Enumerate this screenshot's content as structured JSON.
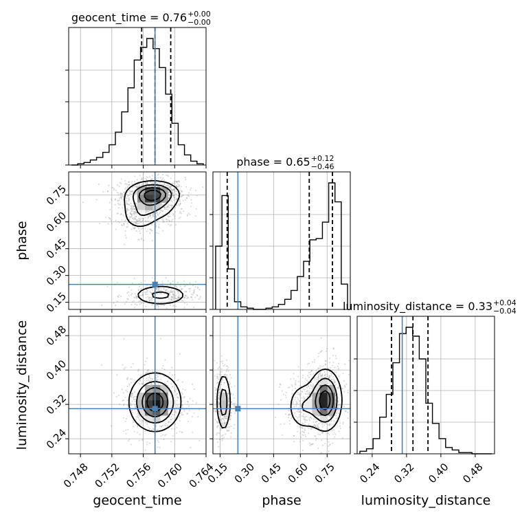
{
  "chart_data": {
    "type": "corner",
    "parameters": [
      "geocent_time",
      "phase",
      "luminosity_distance"
    ],
    "xlabels": [
      "geocent_time",
      "phase",
      "luminosity_distance"
    ],
    "ylabels": [
      "",
      "phase",
      "luminosity_distance"
    ],
    "titles": [
      {
        "param": "geocent_time",
        "text": "geocent_time = 0.76",
        "sup": "+0.00",
        "sub": "−0.00"
      },
      {
        "param": "phase",
        "text": "phase = 0.65",
        "sup": "+0.12",
        "sub": "−0.46"
      },
      {
        "param": "luminosity_distance",
        "text": "luminosity_distance = 0.33",
        "sup": "+0.04",
        "sub": "−0.04"
      }
    ],
    "ranges": {
      "geocent_time": [
        0.7465,
        0.764
      ],
      "phase": [
        0.11,
        0.88
      ],
      "luminosity_distance": [
        0.205,
        0.525
      ]
    },
    "ticks": {
      "geocent_time": [
        "0.748",
        "0.752",
        "0.756",
        "0.760",
        "0.764"
      ],
      "phase": [
        "0.15",
        "0.30",
        "0.45",
        "0.60",
        "0.75"
      ],
      "luminosity_distance": [
        "0.24",
        "0.32",
        "0.40",
        "0.48"
      ]
    },
    "truths": {
      "geocent_time": 0.7575,
      "phase": 0.25,
      "luminosity_distance": 0.31
    },
    "quantiles": {
      "geocent_time": [
        0.7558,
        0.7575,
        0.7595
      ],
      "phase": [
        0.19,
        0.65,
        0.78
      ],
      "luminosity_distance": [
        0.285,
        0.335,
        0.37
      ]
    },
    "histograms": {
      "geocent_time": [
        0,
        0.01,
        0.02,
        0.04,
        0.06,
        0.1,
        0.16,
        0.26,
        0.42,
        0.61,
        0.83,
        0.93,
        1.0,
        0.92,
        0.77,
        0.56,
        0.33,
        0.16,
        0.08,
        0.03,
        0.01
      ],
      "phase": [
        0.5,
        0.9,
        0.32,
        0.06,
        0.02,
        0.01,
        0.0,
        0.0,
        0.01,
        0.02,
        0.04,
        0.08,
        0.15,
        0.26,
        0.38,
        0.55,
        0.56,
        0.69,
        1.0,
        0.85,
        0.2
      ],
      "luminosity_distance": [
        0.02,
        0.04,
        0.12,
        0.29,
        0.47,
        0.72,
        0.95,
        1.0,
        0.93,
        0.75,
        0.4,
        0.24,
        0.12,
        0.05,
        0.03,
        0.01,
        0.01,
        0.0,
        0.0,
        0.0
      ]
    },
    "grid": true,
    "truth_color": "#4682b4",
    "hist_color": "#000000"
  }
}
